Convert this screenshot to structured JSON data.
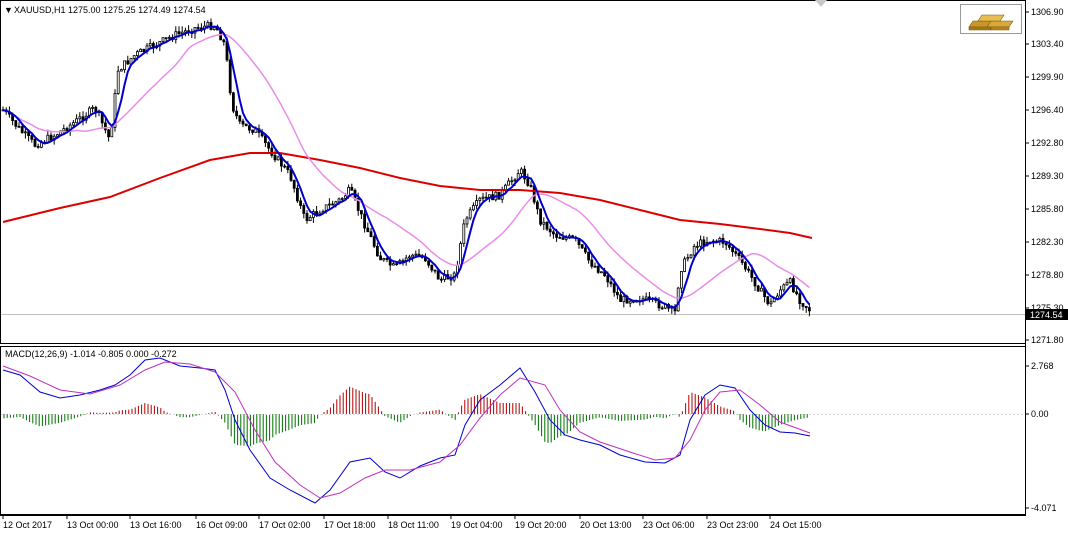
{
  "main_chart": {
    "header": "XAUUSD,H1  1275.00 1275.25 1274.49 1274.54",
    "current_price": "1274.54",
    "price_axis": [
      "1306.90",
      "1303.40",
      "1299.90",
      "1296.40",
      "1292.80",
      "1289.30",
      "1285.80",
      "1282.30",
      "1278.80",
      "1275.30",
      "1271.80"
    ]
  },
  "macd_panel": {
    "header": "MACD(12,26,9) -1.014 -0.805 0.000 -0.272",
    "axis": [
      "2.768",
      "0.00",
      "-4.071"
    ]
  },
  "time_axis": [
    "12 Oct 2017",
    "13 Oct 00:00",
    "13 Oct 16:00",
    "16 Oct 09:00",
    "17 Oct 02:00",
    "17 Oct 18:00",
    "18 Oct 11:00",
    "19 Oct 04:00",
    "19 Oct 20:00",
    "20 Oct 13:00",
    "23 Oct 06:00",
    "23 Oct 23:00",
    "24 Oct 15:00"
  ],
  "colors": {
    "candle": "#000000",
    "fast_ma": "#0000cd",
    "medium_ma": "#e88ee8",
    "slow_ma": "#dd0000",
    "macd_line": "#0000cd",
    "signal_line": "#c030c0",
    "hist_up": "#b00000",
    "hist_down": "#007000",
    "grid_axis": "#000000"
  },
  "logo": {
    "icon": "gold-bars-icon"
  }
}
